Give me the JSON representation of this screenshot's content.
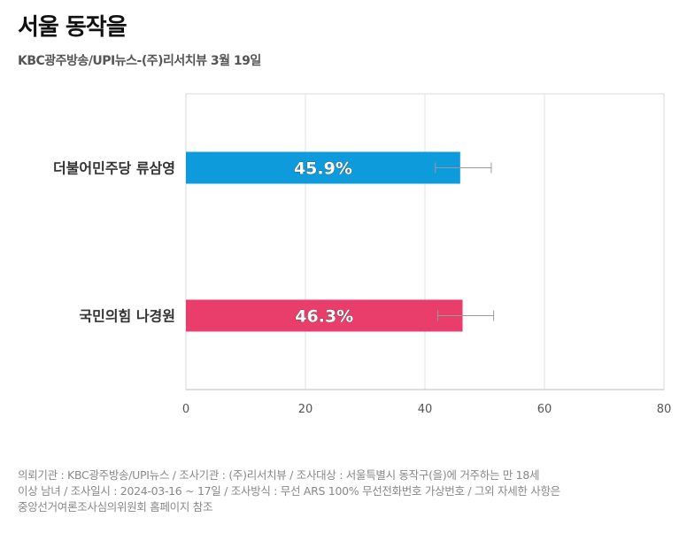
{
  "title": "서울 동작을",
  "subtitle": "KBC광주방송/UPI뉴스-(주)리서치뷰 3월 19일",
  "chart_data": {
    "type": "bar",
    "orientation": "horizontal",
    "categories": [
      "더불어민주당 류삼영",
      "국민의힘 나경원"
    ],
    "values": [
      45.9,
      46.3
    ],
    "value_labels": [
      "45.9%",
      "46.3%"
    ],
    "error_bars": true,
    "colors": [
      "#0E9BDB",
      "#E93E6B"
    ],
    "xlim": [
      0,
      80
    ],
    "xticks": [
      "0",
      "20",
      "40",
      "60",
      "80"
    ],
    "grid": true
  },
  "footer": {
    "line1": "의뢰기관 : KBC광주방송/UPI뉴스 / 조사기관 : (주)리서치뷰 / 조사대상 : 서울특별시 동작구(을)에 거주하는 만 18세",
    "line2": "이상 남녀 / 조사일시 : 2024-03-16 ~ 17일 / 조사방식 : 무선 ARS 100% 무선전화번호 가상번호 / 그외 자세한 사항은",
    "line3": "중앙선거여론조사심의위원회 홈페이지 참조"
  }
}
